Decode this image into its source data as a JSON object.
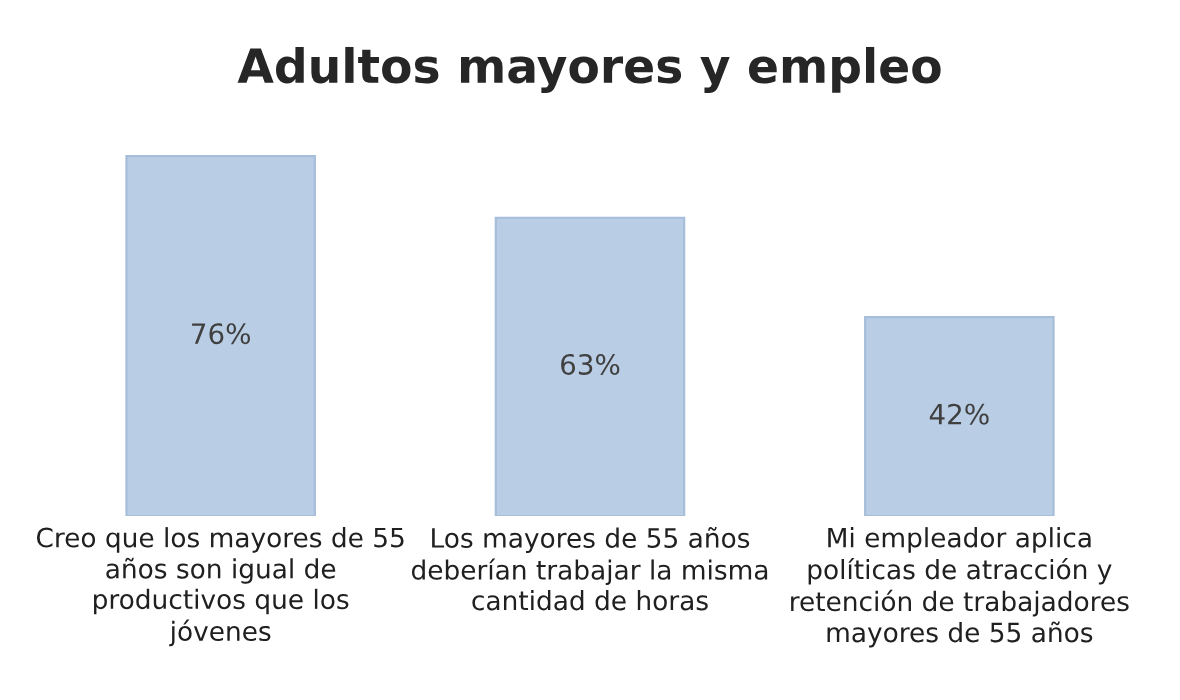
{
  "chart_data": {
    "type": "bar",
    "title": "Adultos mayores y empleo",
    "categories": [
      "Creo que los mayores de 55\naños son igual de\nproductivos que los\njóvenes",
      "Los mayores de 55 años\ndeberían trabajar la misma\ncantidad de horas",
      "Mi empleador aplica\npolíticas de atracción y\nretención de trabajadores\nmayores de 55 años"
    ],
    "values": [
      76,
      63,
      42
    ],
    "value_labels": [
      "76%",
      "63%",
      "42%"
    ],
    "color": "#b9cde5"
  }
}
